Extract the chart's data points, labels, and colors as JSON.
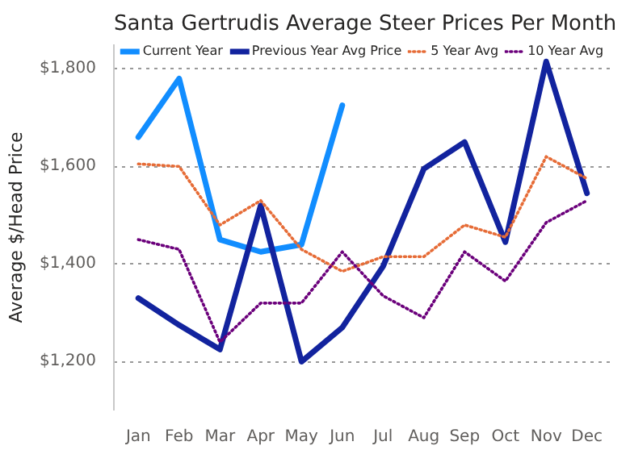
{
  "chart_data": {
    "type": "line",
    "title": "Santa Gertrudis Average Steer Prices Per Month",
    "ylabel": "Average $/Head Price",
    "categories": [
      "Jan",
      "Feb",
      "Mar",
      "Apr",
      "May",
      "Jun",
      "Jul",
      "Aug",
      "Sep",
      "Oct",
      "Nov",
      "Dec"
    ],
    "series": [
      {
        "name": "Current Year",
        "color": "#118dff",
        "line_style": "solid",
        "values": [
          1660,
          1780,
          1450,
          1425,
          1440,
          1725,
          null,
          null,
          null,
          null,
          null,
          null
        ]
      },
      {
        "name": "Previous Year Avg Price",
        "color": "#12239e",
        "line_style": "solid",
        "values": [
          1330,
          1275,
          1225,
          1520,
          1200,
          1270,
          1395,
          1595,
          1650,
          1445,
          1815,
          1545
        ]
      },
      {
        "name": "5 Year Avg",
        "color": "#e66c37",
        "line_style": "dotted",
        "values": [
          1605,
          1600,
          1480,
          1530,
          1430,
          1385,
          1415,
          1415,
          1480,
          1455,
          1620,
          1575
        ]
      },
      {
        "name": "10 Year Avg",
        "color": "#6b007b",
        "line_style": "dotted",
        "values": [
          1450,
          1430,
          1240,
          1320,
          1320,
          1425,
          1335,
          1290,
          1425,
          1365,
          1485,
          1530
        ]
      }
    ],
    "ylim": [
      1100,
      1850
    ],
    "yticks": [
      {
        "value": 1200,
        "label": "$1,200"
      },
      {
        "value": 1400,
        "label": "$1,400"
      },
      {
        "value": 1600,
        "label": "$1,600"
      },
      {
        "value": 1800,
        "label": "$1,800"
      }
    ],
    "grid": "y",
    "legend": "top"
  }
}
